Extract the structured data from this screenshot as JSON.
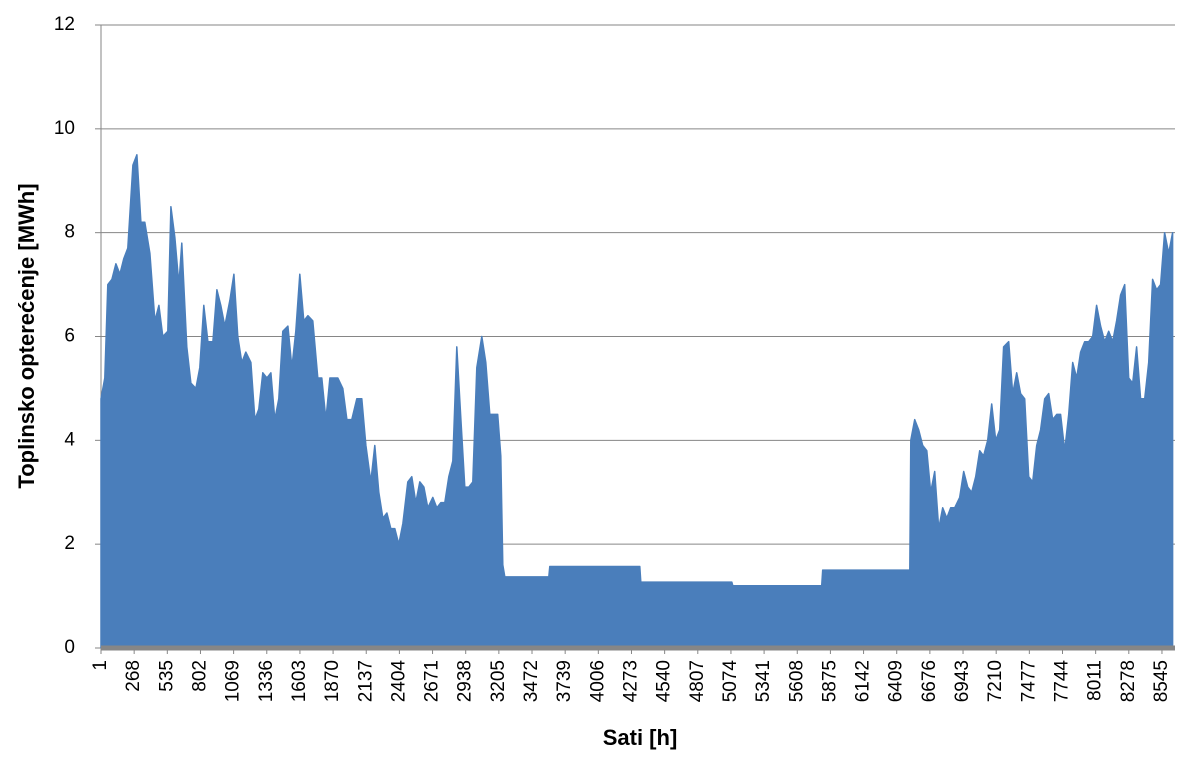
{
  "chart_data": {
    "type": "area",
    "x_label": "Sati [h]",
    "y_label": "Toplinsko opterećenje [MWh]",
    "color": "#4a7ebb",
    "grid": true,
    "xlim": [
      1,
      8650
    ],
    "ylim": [
      0,
      12
    ],
    "yticks": [
      0,
      2,
      4,
      6,
      8,
      10,
      12
    ],
    "xticks": [
      1,
      268,
      535,
      802,
      1069,
      1336,
      1603,
      1870,
      2137,
      2404,
      2671,
      2938,
      3205,
      3472,
      3739,
      4006,
      4273,
      4540,
      4807,
      5074,
      5341,
      5608,
      5875,
      6142,
      6409,
      6676,
      6943,
      7210,
      7477,
      7744,
      8011,
      8278,
      8545
    ],
    "x": [
      1,
      32,
      56,
      89,
      121,
      153,
      185,
      217,
      258,
      290,
      322,
      354,
      395,
      435,
      467,
      499,
      539,
      564,
      596,
      628,
      652,
      692,
      725,
      765,
      797,
      829,
      862,
      902,
      934,
      966,
      998,
      1039,
      1071,
      1103,
      1135,
      1167,
      1208,
      1240,
      1272,
      1304,
      1337,
      1369,
      1401,
      1433,
      1465,
      1506,
      1538,
      1570,
      1602,
      1634,
      1667,
      1707,
      1747,
      1779,
      1812,
      1844,
      1876,
      1908,
      1948,
      1981,
      2021,
      2061,
      2101,
      2134,
      2174,
      2206,
      2238,
      2271,
      2303,
      2335,
      2367,
      2399,
      2432,
      2472,
      2504,
      2536,
      2568,
      2601,
      2633,
      2673,
      2705,
      2738,
      2770,
      2802,
      2834,
      2866,
      2899,
      2931,
      2963,
      2995,
      3027,
      3068,
      3100,
      3132,
      3164,
      3196,
      3221,
      3237,
      3253,
      3607,
      3615,
      4340,
      4348,
      5081,
      5089,
      5805,
      5813,
      6514,
      6522,
      6554,
      6586,
      6618,
      6651,
      6683,
      6715,
      6747,
      6779,
      6812,
      6844,
      6876,
      6916,
      6948,
      6981,
      7013,
      7045,
      7077,
      7109,
      7142,
      7174,
      7206,
      7238,
      7270,
      7311,
      7343,
      7375,
      7407,
      7440,
      7472,
      7504,
      7536,
      7568,
      7601,
      7633,
      7665,
      7697,
      7729,
      7762,
      7794,
      7826,
      7858,
      7890,
      7923,
      7955,
      7987,
      8019,
      8051,
      8084,
      8116,
      8148,
      8180,
      8212,
      8245,
      8277,
      8309,
      8341,
      8373,
      8406,
      8438,
      8470,
      8502,
      8534,
      8566,
      8599,
      8631
    ],
    "values": [
      4.8,
      5.2,
      7.0,
      7.1,
      7.4,
      7.2,
      7.5,
      7.7,
      9.3,
      9.5,
      8.2,
      8.2,
      7.6,
      6.3,
      6.6,
      6.0,
      6.1,
      8.5,
      7.9,
      7.0,
      7.8,
      5.8,
      5.1,
      5.0,
      5.4,
      6.6,
      5.9,
      5.9,
      6.9,
      6.6,
      6.2,
      6.7,
      7.2,
      6.0,
      5.5,
      5.7,
      5.5,
      4.4,
      4.6,
      5.3,
      5.2,
      5.3,
      4.4,
      4.8,
      6.1,
      6.2,
      5.4,
      6.1,
      7.2,
      6.3,
      6.4,
      6.3,
      5.2,
      5.2,
      4.4,
      5.2,
      5.2,
      5.2,
      5.0,
      4.4,
      4.4,
      4.8,
      4.8,
      3.9,
      3.2,
      3.9,
      3.0,
      2.5,
      2.6,
      2.3,
      2.3,
      2.0,
      2.4,
      3.2,
      3.3,
      2.8,
      3.2,
      3.1,
      2.7,
      2.9,
      2.7,
      2.8,
      2.8,
      3.3,
      3.6,
      5.8,
      4.4,
      3.1,
      3.1,
      3.2,
      5.4,
      6.0,
      5.5,
      4.5,
      4.5,
      4.5,
      3.7,
      1.6,
      1.37,
      1.37,
      1.57,
      1.57,
      1.27,
      1.27,
      1.2,
      1.2,
      1.5,
      1.5,
      4.0,
      4.4,
      4.2,
      3.9,
      3.8,
      3.0,
      3.4,
      2.3,
      2.7,
      2.5,
      2.7,
      2.7,
      2.9,
      3.4,
      3.1,
      3.0,
      3.3,
      3.8,
      3.7,
      4.0,
      4.7,
      4.0,
      4.2,
      5.8,
      5.9,
      4.9,
      5.3,
      4.9,
      4.8,
      3.3,
      3.2,
      3.9,
      4.2,
      4.8,
      4.9,
      4.4,
      4.5,
      4.5,
      3.8,
      4.5,
      5.5,
      5.2,
      5.7,
      5.9,
      5.9,
      6.0,
      6.6,
      6.2,
      5.9,
      6.1,
      5.9,
      6.3,
      6.8,
      7.0,
      5.2,
      5.1,
      5.8,
      4.8,
      4.8,
      5.5,
      7.1,
      6.9,
      7.0,
      8.0,
      7.6,
      8.0
    ]
  }
}
